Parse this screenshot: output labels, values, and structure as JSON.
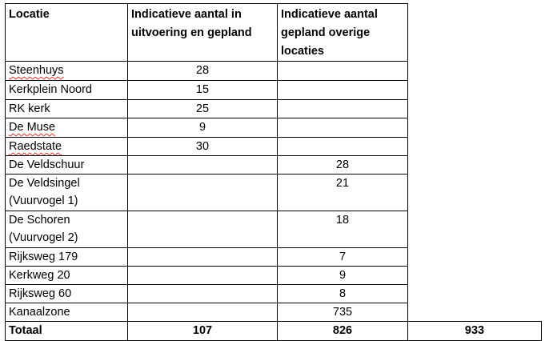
{
  "table": {
    "headers": [
      "Locatie",
      "Indicatieve aantal in uitvoering en gepland",
      "Indicatieve aantal gepland overige locaties"
    ],
    "rows": [
      {
        "locatie": "Steenhuys",
        "uitvoering": "28",
        "overige": ""
      },
      {
        "locatie": "Kerkplein Noord",
        "uitvoering": "15",
        "overige": ""
      },
      {
        "locatie": "RK kerk",
        "uitvoering": "25",
        "overige": ""
      },
      {
        "locatie": "De Muse",
        "uitvoering": "9",
        "overige": ""
      },
      {
        "locatie": "Raedstate",
        "uitvoering": "30",
        "overige": ""
      },
      {
        "locatie": "De Veldschuur",
        "uitvoering": "",
        "overige": "28"
      },
      {
        "locatie": "De Veldsingel (Vuurvogel 1)",
        "uitvoering": "",
        "overige": "21"
      },
      {
        "locatie": "De Schoren (Vuurvogel 2)",
        "uitvoering": "",
        "overige": "18"
      },
      {
        "locatie": "Rijksweg 179",
        "uitvoering": "",
        "overige": "7"
      },
      {
        "locatie": "Kerkweg 20",
        "uitvoering": "",
        "overige": "9"
      },
      {
        "locatie": "Rijksweg 60",
        "uitvoering": "",
        "overige": "8"
      },
      {
        "locatie": "Kanaalzone",
        "uitvoering": "",
        "overige": "735"
      }
    ],
    "total": {
      "label": "Totaal",
      "uitvoering": "107",
      "overige": "826",
      "grand_total": "933"
    }
  }
}
